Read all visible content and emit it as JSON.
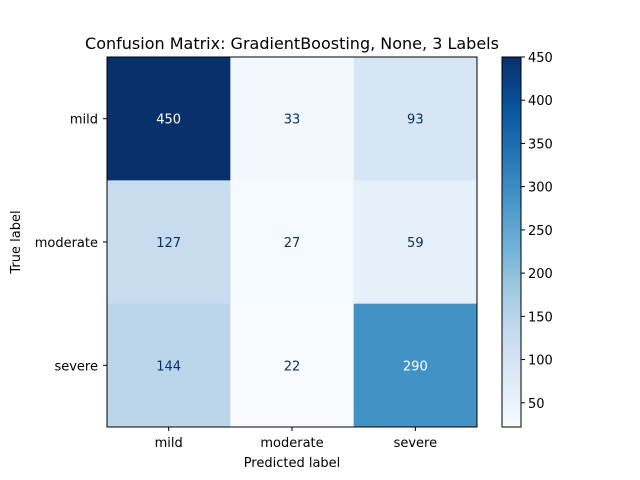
{
  "chart_data": {
    "type": "heatmap",
    "title": "Confusion Matrix: GradientBoosting, None, 3 Labels",
    "xlabel": "Predicted label",
    "ylabel": "True label",
    "x_categories": [
      "mild",
      "moderate",
      "severe"
    ],
    "y_categories": [
      "mild",
      "moderate",
      "severe"
    ],
    "values": [
      [
        450,
        33,
        93
      ],
      [
        127,
        27,
        59
      ],
      [
        144,
        22,
        290
      ]
    ],
    "colormap": "Blues",
    "color_range": [
      22,
      450
    ],
    "colorbar_ticks": [
      50,
      100,
      150,
      200,
      250,
      300,
      350,
      400,
      450
    ],
    "text_color_light": "#ffffff",
    "text_color_dark": "#08306b",
    "grid": false
  }
}
